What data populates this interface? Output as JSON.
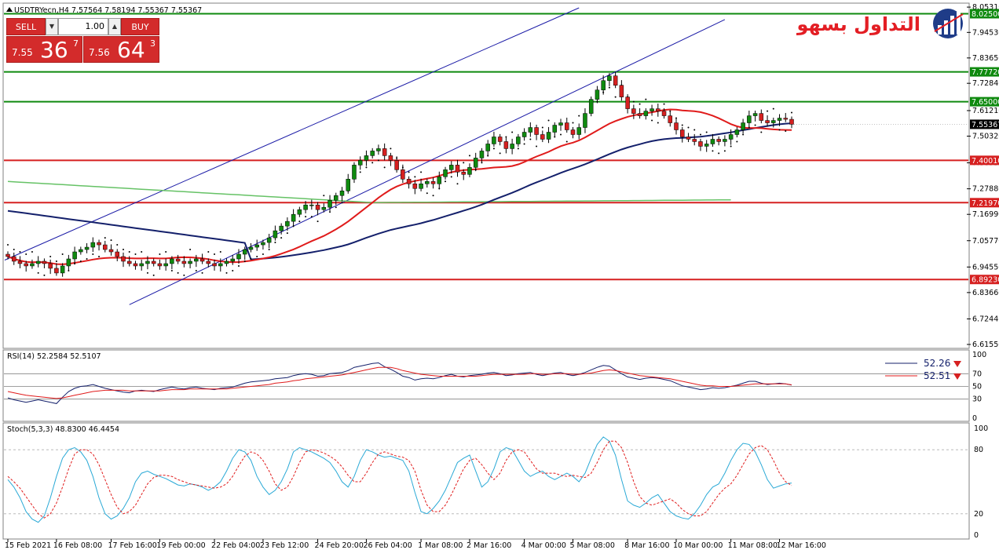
{
  "header": {
    "symbol_line": "USDTRYecn,H4  7.57564 7.58194 7.55367 7.55367"
  },
  "trade_panel": {
    "sell_label": "SELL",
    "buy_label": "BUY",
    "lot_value": "1.00",
    "sell_price": {
      "small": "7.55",
      "big": "36",
      "sup": "7"
    },
    "buy_price": {
      "small": "7.56",
      "big": "64",
      "sup": "3"
    },
    "button_color": "#d32b2b"
  },
  "logo": {
    "text": "التداول بسهولة",
    "icon": "bar-chart-globe-icon",
    "text_color": "#e31e24",
    "icon_color": "#1f3c88"
  },
  "chart_data": [
    {
      "type": "candlestick",
      "name": "main",
      "ylim": [
        6.6155,
        8.05
      ],
      "yticks": [
        "8.05310",
        "7.94530",
        "7.83650",
        "7.72840",
        "7.61210",
        "7.50320",
        "7.38950",
        "7.27880",
        "7.16990",
        "7.05770",
        "6.94550",
        "6.83660",
        "6.72440",
        "6.61550"
      ],
      "horizontal_levels": [
        {
          "value": 8.025,
          "label": "8.02500",
          "color": "#0f8a0f"
        },
        {
          "value": 7.7772,
          "label": "7.77720",
          "color": "#0f8a0f"
        },
        {
          "value": 7.65,
          "label": "7.65000",
          "color": "#0f8a0f"
        },
        {
          "value": 7.4001,
          "label": "7.40010",
          "color": "#d62020"
        },
        {
          "value": 7.2197,
          "label": "7.21970",
          "color": "#d62020"
        },
        {
          "value": 6.8923,
          "label": "6.89230",
          "color": "#d62020"
        }
      ],
      "current_price": {
        "value": 7.55367,
        "label": "7.55367"
      },
      "x_labels": [
        "15 Feb 2021",
        "16 Feb 08:00",
        "17 Feb 16:00",
        "19 Feb 00:00",
        "22 Feb 04:00",
        "23 Feb 12:00",
        "24 Feb 20:00",
        "26 Feb 04:00",
        "1 Mar 08:00",
        "2 Mar 16:00",
        "4 Mar 00:00",
        "5 Mar 08:00",
        "8 Mar 16:00",
        "10 Mar 00:00",
        "11 Mar 08:00",
        "12 Mar 16:00"
      ],
      "close": [
        6.99,
        6.97,
        6.96,
        6.95,
        6.96,
        6.97,
        6.96,
        6.94,
        6.92,
        6.95,
        6.98,
        7.01,
        7.02,
        7.03,
        7.05,
        7.04,
        7.02,
        7.01,
        6.99,
        6.97,
        6.96,
        6.95,
        6.96,
        6.97,
        6.96,
        6.95,
        6.96,
        6.98,
        6.97,
        6.96,
        6.97,
        6.98,
        6.97,
        6.96,
        6.95,
        6.96,
        6.97,
        6.98,
        7.0,
        7.02,
        7.03,
        7.04,
        7.05,
        7.07,
        7.1,
        7.12,
        7.14,
        7.17,
        7.19,
        7.21,
        7.21,
        7.19,
        7.2,
        7.23,
        7.25,
        7.27,
        7.32,
        7.38,
        7.4,
        7.42,
        7.44,
        7.45,
        7.42,
        7.4,
        7.36,
        7.32,
        7.3,
        7.28,
        7.3,
        7.31,
        7.3,
        7.33,
        7.36,
        7.38,
        7.35,
        7.34,
        7.37,
        7.41,
        7.44,
        7.47,
        7.5,
        7.48,
        7.45,
        7.47,
        7.5,
        7.52,
        7.54,
        7.51,
        7.49,
        7.52,
        7.55,
        7.56,
        7.53,
        7.51,
        7.54,
        7.6,
        7.66,
        7.7,
        7.74,
        7.76,
        7.72,
        7.67,
        7.62,
        7.6,
        7.59,
        7.61,
        7.62,
        7.61,
        7.59,
        7.56,
        7.53,
        7.5,
        7.49,
        7.48,
        7.46,
        7.47,
        7.49,
        7.48,
        7.49,
        7.51,
        7.53,
        7.56,
        7.59,
        7.6,
        7.57,
        7.56,
        7.57,
        7.58,
        7.575,
        7.5537
      ],
      "series": [
        {
          "name": "sma_red",
          "color": "#e01b1b"
        },
        {
          "name": "sma_navy",
          "color": "#14206b"
        },
        {
          "name": "sma_green",
          "color": "#66c266"
        },
        {
          "name": "parabolic_sar",
          "color": "#000000"
        },
        {
          "name": "channel",
          "color": "#1a1aa6"
        }
      ]
    },
    {
      "type": "line",
      "name": "rsi",
      "label": "RSI(14) 52.2584 52.5107",
      "ylim": [
        0,
        100
      ],
      "yticks": [
        "100",
        "70",
        "50",
        "30",
        "0"
      ],
      "levels": [
        70,
        50,
        30
      ],
      "legend": [
        {
          "value_label": "52.26",
          "color": "#14206b"
        },
        {
          "value_label": "52.51",
          "color": "#e01b1b"
        }
      ],
      "rsi": [
        32,
        29,
        27,
        25,
        27,
        29,
        27,
        25,
        23,
        33,
        42,
        47,
        50,
        51,
        53,
        50,
        47,
        45,
        43,
        41,
        40,
        43,
        44,
        43,
        42,
        45,
        47,
        49,
        47,
        46,
        48,
        49,
        47,
        46,
        45,
        47,
        48,
        49,
        52,
        55,
        57,
        58,
        59,
        60,
        62,
        63,
        64,
        67,
        69,
        70,
        69,
        66,
        67,
        70,
        71,
        72,
        75,
        80,
        82,
        84,
        86,
        87,
        81,
        77,
        72,
        66,
        64,
        60,
        62,
        63,
        62,
        64,
        67,
        69,
        66,
        65,
        67,
        68,
        69,
        71,
        72,
        70,
        67,
        68,
        70,
        71,
        72,
        69,
        67,
        69,
        71,
        72,
        69,
        67,
        69,
        72,
        76,
        80,
        83,
        82,
        76,
        70,
        65,
        63,
        61,
        63,
        64,
        63,
        61,
        59,
        55,
        51,
        49,
        47,
        45,
        46,
        48,
        47,
        48,
        50,
        52,
        55,
        58,
        58,
        55,
        53,
        54,
        55,
        54,
        52.26
      ],
      "rsi_signal": [
        42,
        40,
        38,
        36,
        35,
        34,
        33,
        32,
        31,
        32,
        34,
        36,
        38,
        40,
        42,
        43,
        44,
        44,
        44,
        44,
        43,
        43,
        43,
        43,
        43,
        43,
        44,
        45,
        45,
        45,
        46,
        46,
        46,
        46,
        46,
        46,
        46,
        47,
        48,
        49,
        50,
        51,
        52,
        53,
        55,
        56,
        57,
        59,
        60,
        62,
        63,
        64,
        65,
        66,
        67,
        68,
        70,
        72,
        74,
        76,
        78,
        80,
        80,
        80,
        78,
        75,
        73,
        71,
        69,
        68,
        67,
        66,
        66,
        66,
        66,
        66,
        66,
        66,
        67,
        68,
        69,
        69,
        69,
        69,
        69,
        69,
        70,
        70,
        69,
        69,
        70,
        70,
        70,
        69,
        69,
        70,
        71,
        73,
        75,
        76,
        75,
        73,
        71,
        69,
        67,
        66,
        65,
        64,
        63,
        62,
        60,
        58,
        56,
        54,
        52,
        51,
        51,
        50,
        50,
        50,
        51,
        52,
        53,
        54,
        54,
        54,
        54,
        54,
        54,
        52.51
      ]
    },
    {
      "type": "line",
      "name": "stochastic",
      "label": "Stoch(5,3,3) 48.8300 46.4454",
      "ylim": [
        0,
        100
      ],
      "yticks": [
        "100",
        "80",
        "20",
        "0"
      ],
      "levels": [
        80,
        20
      ],
      "k": [
        52,
        45,
        35,
        22,
        15,
        12,
        18,
        35,
        55,
        72,
        80,
        82,
        78,
        70,
        55,
        35,
        20,
        15,
        18,
        25,
        35,
        50,
        58,
        60,
        57,
        55,
        53,
        50,
        47,
        46,
        48,
        47,
        45,
        42,
        45,
        50,
        60,
        72,
        80,
        78,
        70,
        55,
        45,
        38,
        42,
        50,
        62,
        78,
        82,
        80,
        78,
        75,
        72,
        68,
        60,
        50,
        45,
        55,
        70,
        80,
        78,
        75,
        73,
        74,
        72,
        70,
        60,
        40,
        22,
        20,
        25,
        32,
        42,
        55,
        68,
        72,
        75,
        60,
        45,
        50,
        62,
        78,
        82,
        80,
        70,
        60,
        55,
        58,
        60,
        55,
        52,
        55,
        58,
        55,
        50,
        58,
        72,
        85,
        92,
        88,
        75,
        52,
        32,
        28,
        26,
        30,
        35,
        38,
        30,
        22,
        18,
        16,
        15,
        20,
        28,
        38,
        45,
        48,
        58,
        70,
        80,
        86,
        85,
        78,
        66,
        52,
        44,
        46,
        48,
        48.83
      ],
      "d": [
        55,
        50,
        44,
        36,
        28,
        20,
        16,
        20,
        30,
        45,
        62,
        76,
        80,
        80,
        76,
        66,
        52,
        38,
        26,
        20,
        22,
        28,
        38,
        48,
        54,
        56,
        56,
        55,
        52,
        50,
        48,
        47,
        46,
        45,
        44,
        45,
        48,
        55,
        65,
        74,
        78,
        76,
        70,
        60,
        48,
        42,
        45,
        55,
        68,
        78,
        80,
        79,
        77,
        74,
        70,
        64,
        56,
        50,
        50,
        58,
        68,
        76,
        78,
        76,
        74,
        73,
        70,
        60,
        42,
        28,
        22,
        22,
        28,
        38,
        50,
        62,
        70,
        72,
        66,
        58,
        52,
        58,
        70,
        78,
        80,
        78,
        70,
        62,
        58,
        58,
        58,
        56,
        55,
        56,
        55,
        54,
        58,
        68,
        80,
        88,
        88,
        82,
        68,
        50,
        36,
        30,
        28,
        30,
        32,
        34,
        30,
        24,
        20,
        18,
        18,
        22,
        30,
        38,
        44,
        48,
        56,
        66,
        76,
        82,
        84,
        80,
        70,
        58,
        50,
        46.45
      ]
    }
  ]
}
